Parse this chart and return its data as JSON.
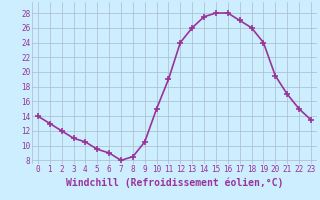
{
  "x": [
    0,
    1,
    2,
    3,
    4,
    5,
    6,
    7,
    8,
    9,
    10,
    11,
    12,
    13,
    14,
    15,
    16,
    17,
    18,
    19,
    20,
    21,
    22,
    23
  ],
  "y": [
    14,
    13,
    12,
    11,
    10.5,
    9.5,
    9,
    8,
    8.5,
    10.5,
    15,
    19,
    24,
    26,
    27.5,
    28,
    28,
    27,
    26,
    24,
    19.5,
    17,
    15,
    13.5
  ],
  "line_color": "#993399",
  "marker": "+",
  "markersize": 4,
  "markeredgewidth": 1.2,
  "bg_color": "#cceeff",
  "grid_color": "#aabbcc",
  "xlabel": "Windchill (Refroidissement éolien,°C)",
  "xlabel_color": "#993399",
  "ylabel_ticks": [
    8,
    10,
    12,
    14,
    16,
    18,
    20,
    22,
    24,
    26,
    28
  ],
  "xtick_labels": [
    "0",
    "1",
    "2",
    "3",
    "4",
    "5",
    "6",
    "7",
    "8",
    "9",
    "10",
    "11",
    "12",
    "13",
    "14",
    "15",
    "16",
    "17",
    "18",
    "19",
    "20",
    "21",
    "22",
    "23"
  ],
  "xlim": [
    -0.5,
    23.5
  ],
  "ylim": [
    7.5,
    29.5
  ],
  "tick_color": "#993399",
  "tick_fontsize": 5.5,
  "xlabel_fontsize": 7.0,
  "linewidth": 1.2
}
